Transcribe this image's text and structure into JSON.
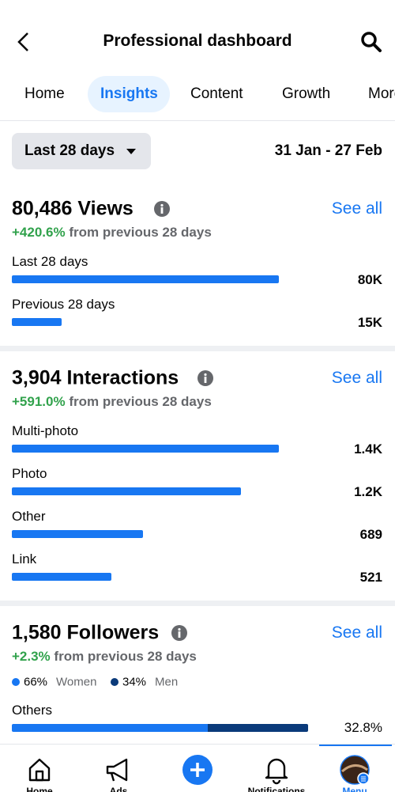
{
  "header": {
    "title": "Professional dashboard"
  },
  "tabs": [
    "Home",
    "Insights",
    "Content",
    "Growth",
    "More"
  ],
  "filter": {
    "range": "Last 28 days",
    "dates": "31 Jan - 27 Feb"
  },
  "views": {
    "title": "80,486 Views",
    "see_all": "See all",
    "change": "+420.6%",
    "change_text": "from previous 28 days",
    "rows": [
      {
        "label": "Last 28 days",
        "value": 80000,
        "value_label": "80K"
      },
      {
        "label": "Previous 28 days",
        "value": 15000,
        "value_label": "15K"
      }
    ]
  },
  "interactions": {
    "title": "3,904 Interactions",
    "see_all": "See all",
    "change": "+591.0%",
    "change_text": "from previous 28 days",
    "rows": [
      {
        "label": "Multi-photo",
        "value": 1400,
        "value_label": "1.4K"
      },
      {
        "label": "Photo",
        "value": 1200,
        "value_label": "1.2K"
      },
      {
        "label": "Other",
        "value": 689,
        "value_label": "689"
      },
      {
        "label": "Link",
        "value": 521,
        "value_label": "521"
      }
    ]
  },
  "followers": {
    "title": "1,580 Followers",
    "see_all": "See all",
    "change": "+2.3%",
    "change_text": "from previous 28 days",
    "legend": [
      {
        "value": 66,
        "value_label": "66%",
        "label": "Women"
      },
      {
        "value": 34,
        "value_label": "34%",
        "label": "Men"
      }
    ],
    "rows": [
      {
        "label": "Others",
        "value": 32.8,
        "value_label": "32.8%"
      }
    ]
  },
  "nav": [
    {
      "label": "Home"
    },
    {
      "label": "Ads"
    },
    {
      "label": "Notifications"
    },
    {
      "label": "Menu"
    }
  ]
}
